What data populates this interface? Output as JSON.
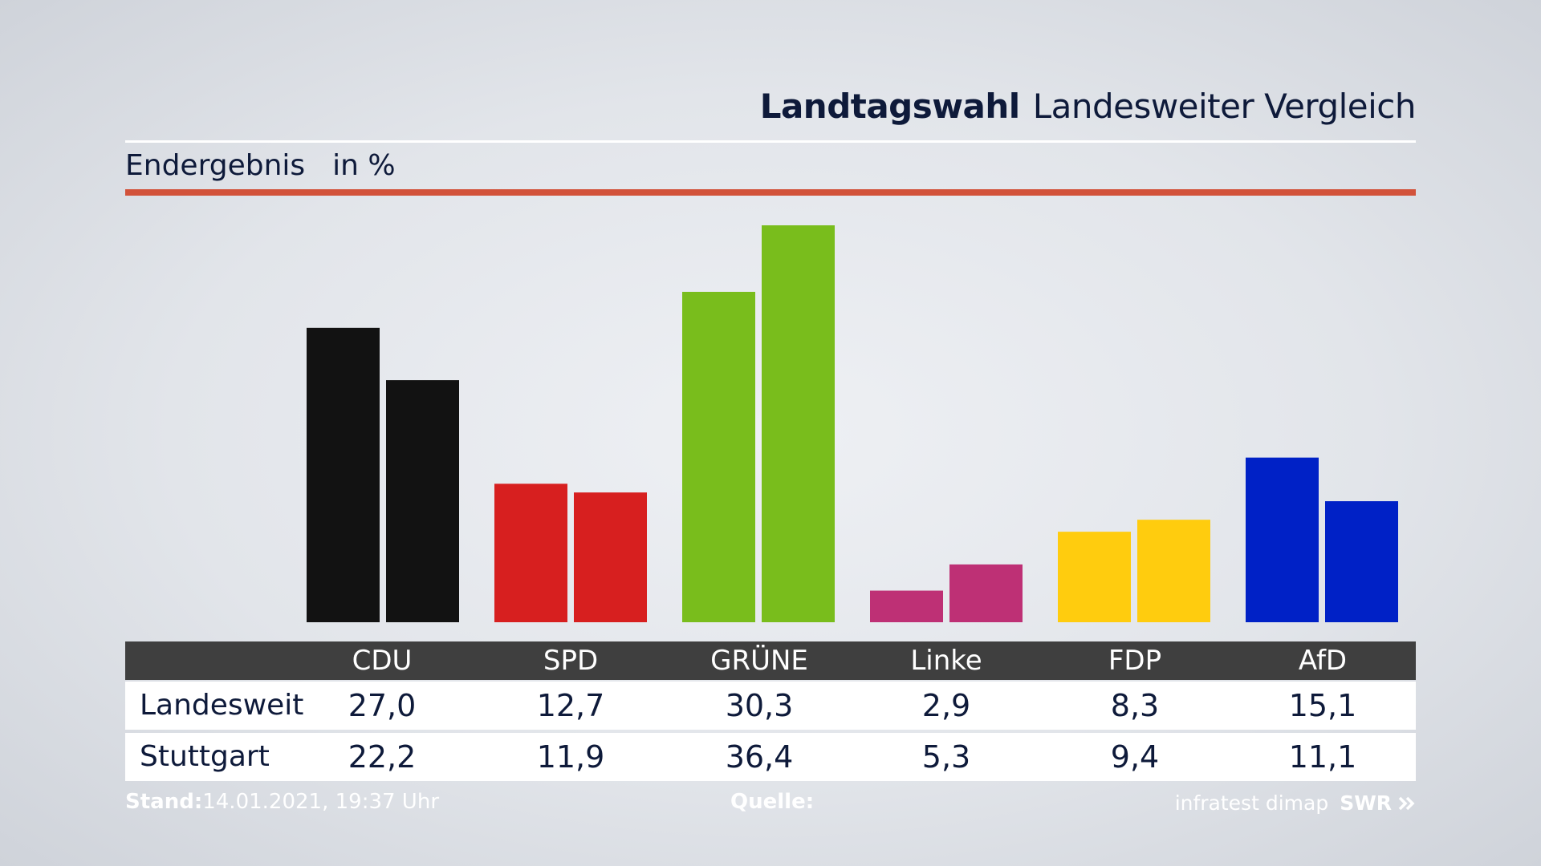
{
  "header": {
    "title_bold": "Landtagswahl",
    "title_rest": "Landesweiter Vergleich"
  },
  "subheader": {
    "label": "Endergebnis",
    "unit": "in %"
  },
  "colors": {
    "accent": "#d2523a",
    "table_header_bg": "#3f3f3f",
    "CDU": "#121212",
    "SPD": "#d71f1f",
    "GRÜNE": "#79bd1c",
    "Linke": "#be3075",
    "FDP": "#ffcc0e",
    "AfD": "#0021c6"
  },
  "chart_data": {
    "type": "bar",
    "categories": [
      "CDU",
      "SPD",
      "GRÜNE",
      "Linke",
      "FDP",
      "AfD"
    ],
    "series": [
      {
        "name": "Landesweit",
        "values": [
          27.0,
          12.7,
          30.3,
          2.9,
          8.3,
          15.1
        ]
      },
      {
        "name": "Stuttgart",
        "values": [
          22.2,
          11.9,
          36.4,
          5.3,
          9.4,
          11.1
        ]
      }
    ],
    "ylim": [
      0,
      36.4
    ],
    "grid": false
  },
  "table": {
    "headers": [
      "CDU",
      "SPD",
      "GRÜNE",
      "Linke",
      "FDP",
      "AfD"
    ],
    "rows": [
      {
        "label": "Landesweit",
        "values": [
          "27,0",
          "12,7",
          "30,3",
          "2,9",
          "8,3",
          "15,1"
        ]
      },
      {
        "label": "Stuttgart",
        "values": [
          "22,2",
          "11,9",
          "36,4",
          "5,3",
          "9,4",
          "11,1"
        ]
      }
    ]
  },
  "footer": {
    "stand_label": "Stand:",
    "stand_value": "14.01.2021, 19:37 Uhr",
    "quelle_label": "Quelle:",
    "source": "infratest dimap",
    "brand": "SWR",
    "brand_icon": "double-chevron-right-icon"
  }
}
